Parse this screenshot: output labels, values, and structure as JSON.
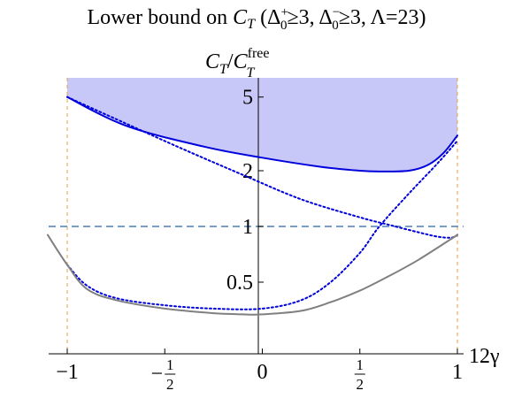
{
  "chart_data": {
    "type": "line",
    "title": "Lower bound on C_T (Δ₀⁺≥3, Δ₀⁻≥3, Λ=23)",
    "title_parts": {
      "prefix": "Lower bound on ",
      "ct_main": "C",
      "ct_sub": "T",
      "open": " (Δ",
      "d1_sub": "0",
      "d1_sup": "+",
      "mid1": "≥3, Δ",
      "d2_sub": "0",
      "d2_sup": "−",
      "suffix": "≥3, Λ=23)"
    },
    "ylabel": "C_T/C_T^free",
    "ylabel_parts": {
      "c1": "C",
      "s1": "T",
      "slash": "/",
      "c2": "C",
      "s2": "T",
      "sup": "free"
    },
    "xlabel": "12γ",
    "xlim": [
      -1.1,
      1.0
    ],
    "ylim": [
      0.3,
      6.0
    ],
    "yscale": "log",
    "x_ticks": [
      {
        "value": -1,
        "label": "−1"
      },
      {
        "value": -0.5,
        "label": "−1/2",
        "frac": true,
        "num": "1",
        "den": "2",
        "sign": "−"
      },
      {
        "value": 0,
        "label": "0"
      },
      {
        "value": 0.5,
        "label": "1/2",
        "frac": true,
        "num": "1",
        "den": "2",
        "sign": ""
      },
      {
        "value": 1,
        "label": "1"
      }
    ],
    "y_ticks": [
      {
        "value": 0.5,
        "label": "0.5"
      },
      {
        "value": 1,
        "label": "1"
      },
      {
        "value": 2,
        "label": "2"
      },
      {
        "value": 5,
        "label": "5"
      }
    ],
    "colors": {
      "bound_line": "#0000dd",
      "shaded_region": "#c8c8f8",
      "dotted": "#0000dd",
      "gray_line": "#808080",
      "free_line": "#4a7fb5",
      "vertical_lines": "#e8a040"
    },
    "series": [
      {
        "role": "lower-bound-solid",
        "x": [
          -1.0,
          -0.7,
          -0.3,
          0.0,
          0.3,
          0.5,
          0.6,
          0.75,
          0.85,
          0.93,
          1.0
        ],
        "y": [
          5.0,
          3.5,
          2.7,
          2.35,
          2.1,
          2.0,
          1.98,
          2.0,
          2.15,
          2.5,
          3.1
        ]
      },
      {
        "role": "dotted-decreasing",
        "x": [
          -1.0,
          -0.7,
          -0.4,
          -0.1,
          0.2,
          0.5,
          0.65,
          0.8,
          0.9,
          0.97,
          1.0
        ],
        "y": [
          5.0,
          3.6,
          2.6,
          1.9,
          1.4,
          1.12,
          1.02,
          0.93,
          0.88,
          0.87,
          0.9
        ]
      },
      {
        "role": "dotted-increasing",
        "x": [
          -1.0,
          -0.9,
          -0.75,
          -0.5,
          -0.25,
          0.0,
          0.2,
          0.35,
          0.5,
          0.6,
          0.75,
          0.9,
          1.0
        ],
        "y": [
          0.62,
          0.48,
          0.41,
          0.375,
          0.36,
          0.36,
          0.4,
          0.5,
          0.72,
          1.0,
          1.5,
          2.2,
          2.9
        ]
      },
      {
        "role": "gray-line",
        "x": [
          -1.1,
          -1.0,
          -0.9,
          -0.75,
          -0.5,
          -0.25,
          -0.1,
          0.0,
          0.2,
          0.35,
          0.5,
          0.65,
          0.8,
          1.0
        ],
        "y": [
          0.9,
          0.62,
          0.46,
          0.4,
          0.36,
          0.34,
          0.335,
          0.335,
          0.35,
          0.39,
          0.45,
          0.54,
          0.66,
          0.9
        ]
      }
    ],
    "reference_lines": {
      "horizontal_y": 1,
      "vertical_x": [
        -1,
        1
      ]
    },
    "shaded_above": "lower-bound-solid",
    "grid": false
  }
}
